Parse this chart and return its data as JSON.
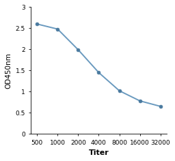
{
  "x_positions": [
    0,
    1,
    2,
    3,
    4,
    5,
    6
  ],
  "y": [
    2.6,
    2.48,
    1.99,
    1.45,
    1.02,
    0.78,
    0.65
  ],
  "xtick_labels": [
    "500",
    "1000",
    "2000",
    "4000",
    "8000",
    "16000",
    "32000"
  ],
  "line_color": "#6a9abf",
  "marker_color": "#4a7a9f",
  "marker_style": "o",
  "marker_size": 3.5,
  "line_width": 1.4,
  "xlabel": "Titer",
  "ylabel": "OD450nm",
  "ylim": [
    0,
    3.0
  ],
  "yticks": [
    0,
    0.5,
    1.0,
    1.5,
    2.0,
    2.5,
    3.0
  ],
  "ytick_labels": [
    "0",
    "0.5",
    "1",
    "1.5",
    "2",
    "2.5",
    "3"
  ],
  "xlabel_fontsize": 8,
  "ylabel_fontsize": 7.5,
  "tick_fontsize": 6.5,
  "background_color": "#ffffff"
}
